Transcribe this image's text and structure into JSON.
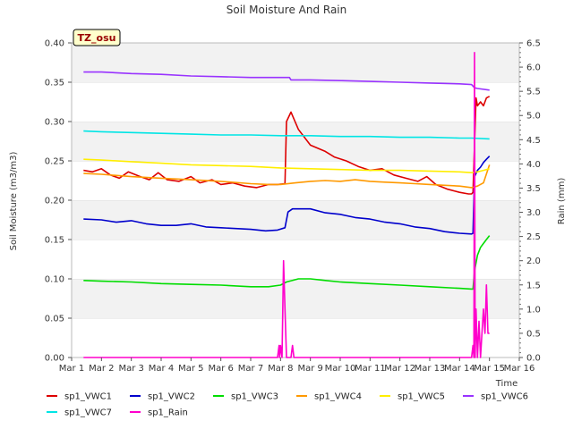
{
  "chart_data": {
    "type": "line",
    "title": "Soil Moisture And Rain",
    "site_label": "TZ_osu",
    "xlabel": "Time",
    "ylabel": "Soil Moisture (m3/m3)",
    "y2label": "Rain (mm)",
    "x_ticks": [
      "Mar 1",
      "Mar 2",
      "Mar 3",
      "Mar 4",
      "Mar 5",
      "Mar 6",
      "Mar 7",
      "Mar 8",
      "Mar 9",
      "Mar 10",
      "Mar 11",
      "Mar 12",
      "Mar 13",
      "Mar 14",
      "Mar 15",
      "Mar 16"
    ],
    "xlim": [
      1,
      16
    ],
    "ylim": [
      0,
      0.4
    ],
    "y_ticks": [
      "0.00",
      "0.05",
      "0.10",
      "0.15",
      "0.20",
      "0.25",
      "0.30",
      "0.35",
      "0.40"
    ],
    "y2lim": [
      0,
      6.5
    ],
    "y2_ticks": [
      "0.0",
      "0.5",
      "1.0",
      "1.5",
      "2.0",
      "2.5",
      "3.0",
      "3.5",
      "4.0",
      "4.5",
      "5.0",
      "5.5",
      "6.0",
      "6.5"
    ],
    "grid": "horizontal bands",
    "legend_position": "bottom",
    "series": [
      {
        "name": "sp1_VWC1",
        "color": "#dd0000",
        "axis": "left",
        "x": [
          1.4,
          1.7,
          2.0,
          2.3,
          2.6,
          2.9,
          3.3,
          3.6,
          3.9,
          4.2,
          4.6,
          5.0,
          5.3,
          5.7,
          6.0,
          6.4,
          6.8,
          7.2,
          7.6,
          7.9,
          8.15,
          8.2,
          8.35,
          8.6,
          9.0,
          9.5,
          9.8,
          10.2,
          10.6,
          11.0,
          11.4,
          11.8,
          12.2,
          12.6,
          12.9,
          13.2,
          13.6,
          14.0,
          14.3,
          14.4,
          14.45,
          14.55,
          14.6,
          14.7,
          14.8,
          14.9,
          15.0
        ],
        "y": [
          0.238,
          0.236,
          0.24,
          0.232,
          0.228,
          0.236,
          0.23,
          0.226,
          0.235,
          0.226,
          0.224,
          0.23,
          0.222,
          0.226,
          0.22,
          0.222,
          0.218,
          0.216,
          0.22,
          0.22,
          0.221,
          0.3,
          0.312,
          0.29,
          0.27,
          0.262,
          0.255,
          0.25,
          0.243,
          0.238,
          0.24,
          0.232,
          0.228,
          0.224,
          0.23,
          0.22,
          0.214,
          0.21,
          0.208,
          0.208,
          0.21,
          0.33,
          0.32,
          0.325,
          0.32,
          0.33,
          0.332
        ]
      },
      {
        "name": "sp1_VWC2",
        "color": "#0000cc",
        "axis": "left",
        "x": [
          1.4,
          2.0,
          2.5,
          3.0,
          3.5,
          4.0,
          4.5,
          5.0,
          5.5,
          6.0,
          6.5,
          7.0,
          7.5,
          7.9,
          8.15,
          8.25,
          8.4,
          9.0,
          9.5,
          10.0,
          10.5,
          11.0,
          11.5,
          12.0,
          12.5,
          13.0,
          13.5,
          14.0,
          14.4,
          14.45,
          14.5,
          14.6,
          14.7,
          14.8,
          14.9,
          15.0
        ],
        "y": [
          0.176,
          0.175,
          0.172,
          0.174,
          0.17,
          0.168,
          0.168,
          0.17,
          0.166,
          0.165,
          0.164,
          0.163,
          0.161,
          0.162,
          0.165,
          0.185,
          0.189,
          0.189,
          0.184,
          0.182,
          0.178,
          0.176,
          0.172,
          0.17,
          0.166,
          0.164,
          0.16,
          0.158,
          0.157,
          0.158,
          0.23,
          0.238,
          0.242,
          0.248,
          0.252,
          0.256
        ]
      },
      {
        "name": "sp1_VWC3",
        "color": "#00dd00",
        "axis": "left",
        "x": [
          1.4,
          2.0,
          3.0,
          4.0,
          5.0,
          6.0,
          7.0,
          7.6,
          8.0,
          8.2,
          8.6,
          9.0,
          9.5,
          10.0,
          11.0,
          12.0,
          13.0,
          14.0,
          14.4,
          14.45,
          14.5,
          14.6,
          14.7,
          14.8,
          14.9,
          15.0
        ],
        "y": [
          0.098,
          0.097,
          0.096,
          0.094,
          0.093,
          0.092,
          0.09,
          0.09,
          0.092,
          0.096,
          0.1,
          0.1,
          0.098,
          0.096,
          0.094,
          0.092,
          0.09,
          0.088,
          0.087,
          0.087,
          0.11,
          0.13,
          0.14,
          0.145,
          0.15,
          0.155
        ]
      },
      {
        "name": "sp1_VWC4",
        "color": "#ff9900",
        "axis": "left",
        "x": [
          1.4,
          2.0,
          3.0,
          4.0,
          5.0,
          6.0,
          7.0,
          7.6,
          8.0,
          8.5,
          9.0,
          9.5,
          10.0,
          10.5,
          11.0,
          11.5,
          12.0,
          12.5,
          13.0,
          13.5,
          14.0,
          14.4,
          14.6,
          14.8,
          15.0
        ],
        "y": [
          0.234,
          0.233,
          0.23,
          0.228,
          0.226,
          0.224,
          0.221,
          0.22,
          0.22,
          0.222,
          0.224,
          0.225,
          0.224,
          0.226,
          0.224,
          0.223,
          0.222,
          0.221,
          0.22,
          0.219,
          0.218,
          0.216,
          0.218,
          0.222,
          0.245
        ]
      },
      {
        "name": "sp1_VWC5",
        "color": "#ffee00",
        "axis": "left",
        "x": [
          1.4,
          2.0,
          3.0,
          4.0,
          5.0,
          6.0,
          7.0,
          8.0,
          9.0,
          10.0,
          11.0,
          12.0,
          13.0,
          14.0,
          14.4,
          14.6,
          14.8,
          15.0
        ],
        "y": [
          0.252,
          0.251,
          0.249,
          0.247,
          0.245,
          0.244,
          0.243,
          0.241,
          0.24,
          0.239,
          0.238,
          0.238,
          0.237,
          0.236,
          0.235,
          0.236,
          0.238,
          0.24
        ]
      },
      {
        "name": "sp1_VWC6",
        "color": "#9933ff",
        "axis": "left",
        "x": [
          1.4,
          2.0,
          3.0,
          4.0,
          5.0,
          6.0,
          7.0,
          8.0,
          8.3,
          8.35,
          9.0,
          10.0,
          11.0,
          12.0,
          13.0,
          14.0,
          14.4,
          14.5,
          14.6,
          15.0
        ],
        "y": [
          0.363,
          0.363,
          0.361,
          0.36,
          0.358,
          0.357,
          0.356,
          0.356,
          0.356,
          0.353,
          0.353,
          0.352,
          0.351,
          0.35,
          0.349,
          0.348,
          0.347,
          0.343,
          0.342,
          0.34
        ]
      },
      {
        "name": "sp1_VWC7",
        "color": "#00e5e5",
        "axis": "left",
        "x": [
          1.4,
          2.0,
          3.0,
          4.0,
          5.0,
          6.0,
          7.0,
          8.0,
          9.0,
          10.0,
          11.0,
          12.0,
          13.0,
          14.0,
          14.4,
          15.0
        ],
        "y": [
          0.288,
          0.287,
          0.286,
          0.285,
          0.284,
          0.283,
          0.283,
          0.282,
          0.282,
          0.281,
          0.281,
          0.28,
          0.28,
          0.279,
          0.279,
          0.278
        ]
      },
      {
        "name": "sp1_Rain",
        "color": "#ff00cc",
        "axis": "right",
        "x": [
          1.4,
          7.9,
          7.95,
          7.97,
          8.0,
          8.05,
          8.1,
          8.15,
          8.2,
          8.25,
          8.3,
          8.35,
          8.4,
          8.45,
          8.5,
          8.55,
          8.6,
          8.65,
          14.4,
          14.45,
          14.48,
          14.5,
          14.52,
          14.55,
          14.6,
          14.65,
          14.7,
          14.75,
          14.8,
          14.85,
          14.9,
          14.95,
          15.0
        ],
        "y": [
          0,
          0,
          0.25,
          0,
          0.25,
          0,
          2.0,
          1.0,
          0,
          0,
          0,
          0,
          0.25,
          0,
          0,
          0,
          0,
          0,
          0,
          0.25,
          0,
          6.3,
          0,
          1.0,
          0,
          0.75,
          0,
          0.5,
          1.0,
          0.5,
          1.5,
          0.5,
          0.5
        ]
      }
    ]
  }
}
